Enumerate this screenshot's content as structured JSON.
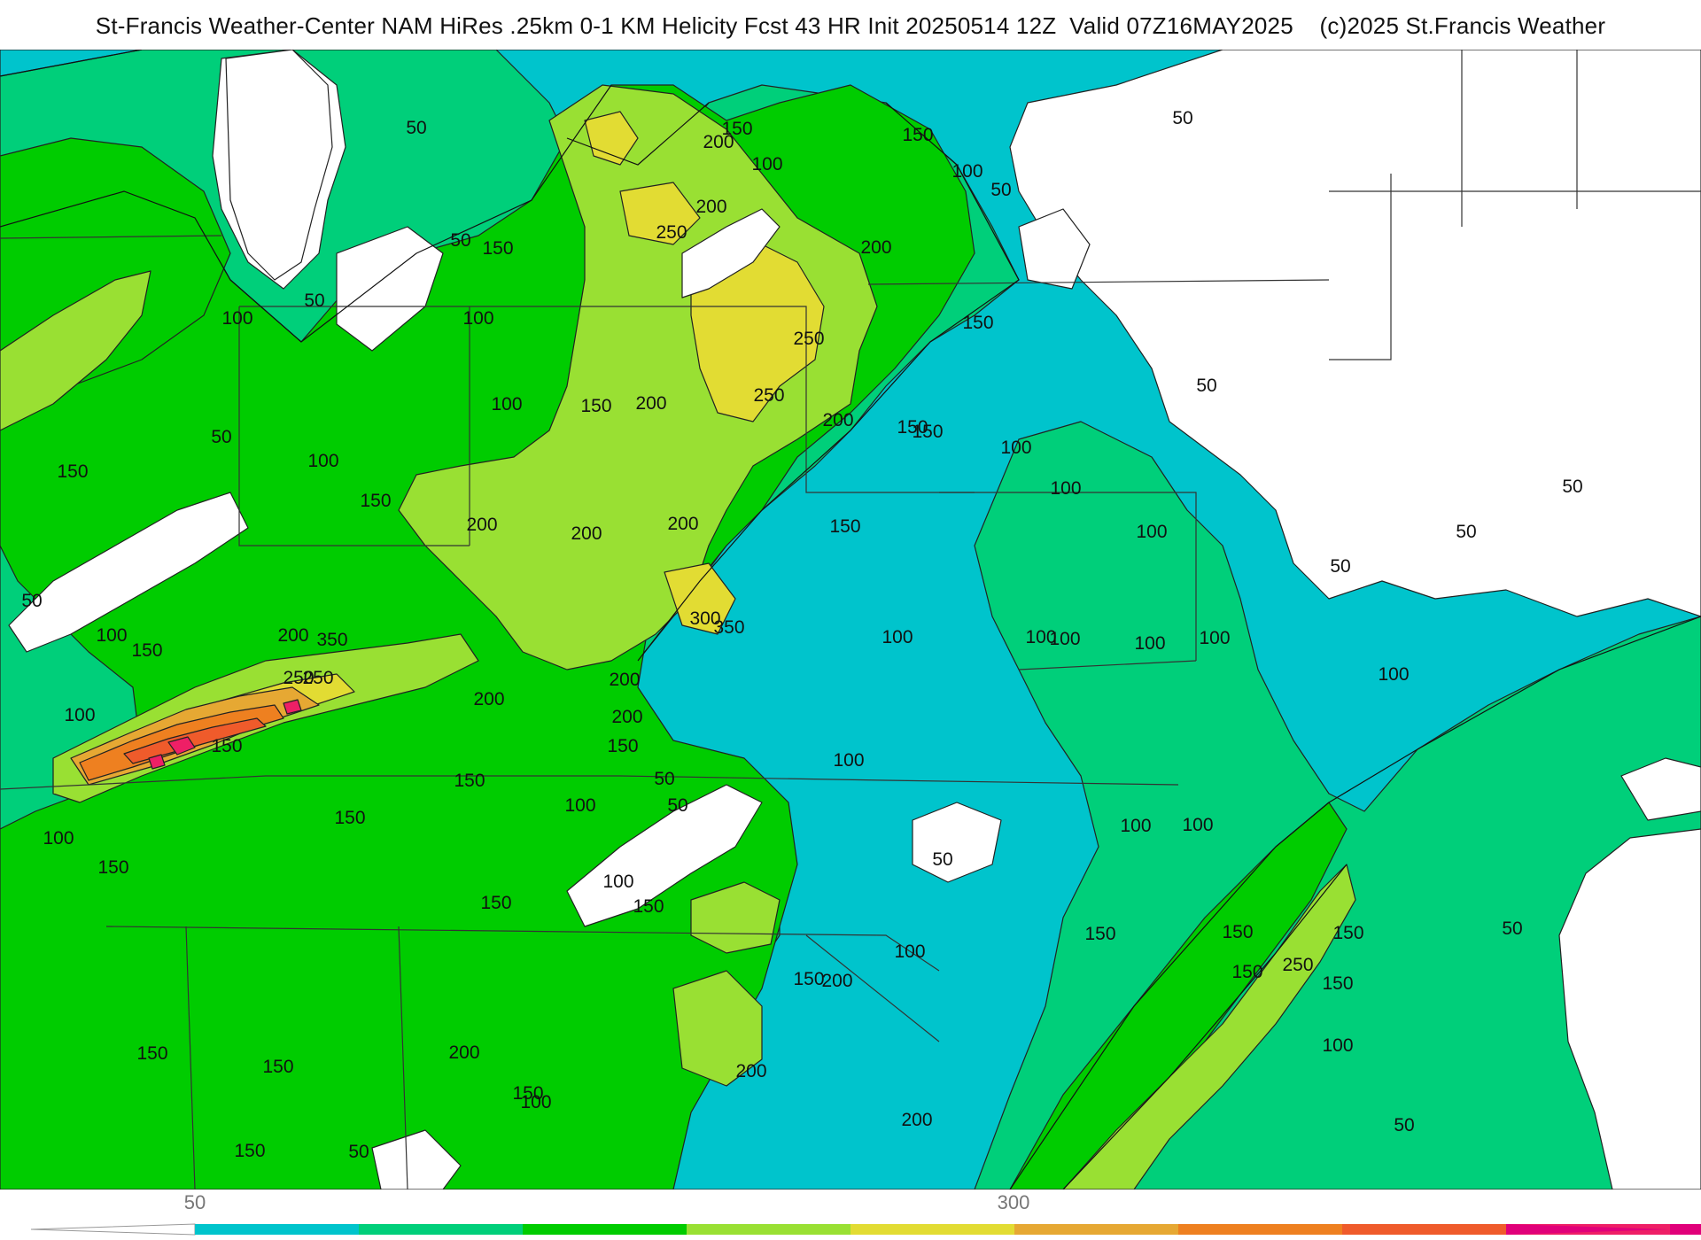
{
  "title": "St-Francis Weather-Center NAM HiRes .25km 0-1 KM Helicity Fcst 43 HR Init 20250514 12Z  Valid 07Z16MAY2025    (c)2025 St.Francis Weather",
  "colorbar": {
    "tick_labels": [
      "50",
      "300"
    ],
    "colors": [
      "#00c4cc",
      "#00cf7a",
      "#00cc00",
      "#99e033",
      "#e2dc33",
      "#e6a833",
      "#ee8020",
      "#ef5b2b",
      "#ee1f66",
      "#e0007a"
    ]
  },
  "fill_colors": {
    "background": "#ffffff",
    "lt50": "#ffffff",
    "c50": "#00c4cc",
    "c100": "#00cf7a",
    "c150": "#00cc00",
    "c200": "#99e033",
    "c250": "#e2dc33",
    "c300": "#e6a833",
    "c350": "#ee8020",
    "c400": "#ef5b2b",
    "c450": "#ee1f66"
  },
  "contour_labels": [
    "50",
    "50",
    "50",
    "50",
    "50",
    "50",
    "50",
    "50",
    "50",
    "50",
    "50",
    "50",
    "50",
    "50",
    "50",
    "50",
    "50",
    "100",
    "100",
    "100",
    "100",
    "100",
    "100",
    "100",
    "100",
    "100",
    "100",
    "100",
    "100",
    "100",
    "100",
    "100",
    "100",
    "100",
    "100",
    "100",
    "100",
    "100",
    "100",
    "100",
    "100",
    "100",
    "100",
    "150",
    "150",
    "150",
    "150",
    "150",
    "150",
    "150",
    "150",
    "150",
    "150",
    "150",
    "150",
    "150",
    "150",
    "150",
    "150",
    "150",
    "150",
    "150",
    "150",
    "150",
    "150",
    "150",
    "150",
    "150",
    "150",
    "150",
    "150",
    "200",
    "200",
    "200",
    "200",
    "200",
    "200",
    "200",
    "200",
    "200",
    "200",
    "200",
    "200",
    "200",
    "200",
    "200",
    "200",
    "250",
    "250",
    "250",
    "250",
    "250",
    "250",
    "300",
    "350",
    "350"
  ]
}
